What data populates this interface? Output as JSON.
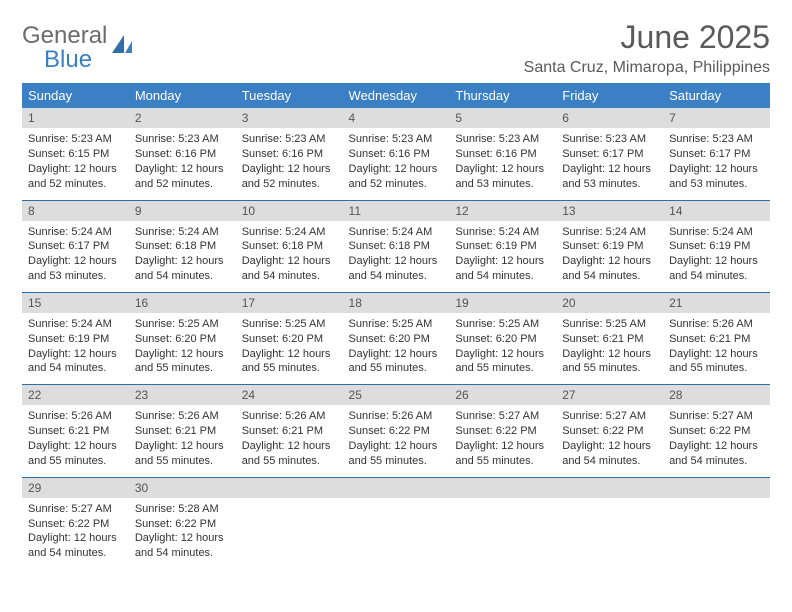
{
  "logo": {
    "text1": "General",
    "text2": "Blue"
  },
  "title": "June 2025",
  "location": "Santa Cruz, Mimaropa, Philippines",
  "colors": {
    "header_bg": "#3b7fc4",
    "daynum_bg": "#dddddd",
    "rule": "#2f6fa8",
    "text": "#333333",
    "muted": "#5a5a5a"
  },
  "weekdays": [
    "Sunday",
    "Monday",
    "Tuesday",
    "Wednesday",
    "Thursday",
    "Friday",
    "Saturday"
  ],
  "weeks": [
    [
      {
        "n": "1",
        "sr": "Sunrise: 5:23 AM",
        "ss": "Sunset: 6:15 PM",
        "dl": "Daylight: 12 hours and 52 minutes."
      },
      {
        "n": "2",
        "sr": "Sunrise: 5:23 AM",
        "ss": "Sunset: 6:16 PM",
        "dl": "Daylight: 12 hours and 52 minutes."
      },
      {
        "n": "3",
        "sr": "Sunrise: 5:23 AM",
        "ss": "Sunset: 6:16 PM",
        "dl": "Daylight: 12 hours and 52 minutes."
      },
      {
        "n": "4",
        "sr": "Sunrise: 5:23 AM",
        "ss": "Sunset: 6:16 PM",
        "dl": "Daylight: 12 hours and 52 minutes."
      },
      {
        "n": "5",
        "sr": "Sunrise: 5:23 AM",
        "ss": "Sunset: 6:16 PM",
        "dl": "Daylight: 12 hours and 53 minutes."
      },
      {
        "n": "6",
        "sr": "Sunrise: 5:23 AM",
        "ss": "Sunset: 6:17 PM",
        "dl": "Daylight: 12 hours and 53 minutes."
      },
      {
        "n": "7",
        "sr": "Sunrise: 5:23 AM",
        "ss": "Sunset: 6:17 PM",
        "dl": "Daylight: 12 hours and 53 minutes."
      }
    ],
    [
      {
        "n": "8",
        "sr": "Sunrise: 5:24 AM",
        "ss": "Sunset: 6:17 PM",
        "dl": "Daylight: 12 hours and 53 minutes."
      },
      {
        "n": "9",
        "sr": "Sunrise: 5:24 AM",
        "ss": "Sunset: 6:18 PM",
        "dl": "Daylight: 12 hours and 54 minutes."
      },
      {
        "n": "10",
        "sr": "Sunrise: 5:24 AM",
        "ss": "Sunset: 6:18 PM",
        "dl": "Daylight: 12 hours and 54 minutes."
      },
      {
        "n": "11",
        "sr": "Sunrise: 5:24 AM",
        "ss": "Sunset: 6:18 PM",
        "dl": "Daylight: 12 hours and 54 minutes."
      },
      {
        "n": "12",
        "sr": "Sunrise: 5:24 AM",
        "ss": "Sunset: 6:19 PM",
        "dl": "Daylight: 12 hours and 54 minutes."
      },
      {
        "n": "13",
        "sr": "Sunrise: 5:24 AM",
        "ss": "Sunset: 6:19 PM",
        "dl": "Daylight: 12 hours and 54 minutes."
      },
      {
        "n": "14",
        "sr": "Sunrise: 5:24 AM",
        "ss": "Sunset: 6:19 PM",
        "dl": "Daylight: 12 hours and 54 minutes."
      }
    ],
    [
      {
        "n": "15",
        "sr": "Sunrise: 5:24 AM",
        "ss": "Sunset: 6:19 PM",
        "dl": "Daylight: 12 hours and 54 minutes."
      },
      {
        "n": "16",
        "sr": "Sunrise: 5:25 AM",
        "ss": "Sunset: 6:20 PM",
        "dl": "Daylight: 12 hours and 55 minutes."
      },
      {
        "n": "17",
        "sr": "Sunrise: 5:25 AM",
        "ss": "Sunset: 6:20 PM",
        "dl": "Daylight: 12 hours and 55 minutes."
      },
      {
        "n": "18",
        "sr": "Sunrise: 5:25 AM",
        "ss": "Sunset: 6:20 PM",
        "dl": "Daylight: 12 hours and 55 minutes."
      },
      {
        "n": "19",
        "sr": "Sunrise: 5:25 AM",
        "ss": "Sunset: 6:20 PM",
        "dl": "Daylight: 12 hours and 55 minutes."
      },
      {
        "n": "20",
        "sr": "Sunrise: 5:25 AM",
        "ss": "Sunset: 6:21 PM",
        "dl": "Daylight: 12 hours and 55 minutes."
      },
      {
        "n": "21",
        "sr": "Sunrise: 5:26 AM",
        "ss": "Sunset: 6:21 PM",
        "dl": "Daylight: 12 hours and 55 minutes."
      }
    ],
    [
      {
        "n": "22",
        "sr": "Sunrise: 5:26 AM",
        "ss": "Sunset: 6:21 PM",
        "dl": "Daylight: 12 hours and 55 minutes."
      },
      {
        "n": "23",
        "sr": "Sunrise: 5:26 AM",
        "ss": "Sunset: 6:21 PM",
        "dl": "Daylight: 12 hours and 55 minutes."
      },
      {
        "n": "24",
        "sr": "Sunrise: 5:26 AM",
        "ss": "Sunset: 6:21 PM",
        "dl": "Daylight: 12 hours and 55 minutes."
      },
      {
        "n": "25",
        "sr": "Sunrise: 5:26 AM",
        "ss": "Sunset: 6:22 PM",
        "dl": "Daylight: 12 hours and 55 minutes."
      },
      {
        "n": "26",
        "sr": "Sunrise: 5:27 AM",
        "ss": "Sunset: 6:22 PM",
        "dl": "Daylight: 12 hours and 55 minutes."
      },
      {
        "n": "27",
        "sr": "Sunrise: 5:27 AM",
        "ss": "Sunset: 6:22 PM",
        "dl": "Daylight: 12 hours and 54 minutes."
      },
      {
        "n": "28",
        "sr": "Sunrise: 5:27 AM",
        "ss": "Sunset: 6:22 PM",
        "dl": "Daylight: 12 hours and 54 minutes."
      }
    ],
    [
      {
        "n": "29",
        "sr": "Sunrise: 5:27 AM",
        "ss": "Sunset: 6:22 PM",
        "dl": "Daylight: 12 hours and 54 minutes."
      },
      {
        "n": "30",
        "sr": "Sunrise: 5:28 AM",
        "ss": "Sunset: 6:22 PM",
        "dl": "Daylight: 12 hours and 54 minutes."
      },
      null,
      null,
      null,
      null,
      null
    ]
  ]
}
